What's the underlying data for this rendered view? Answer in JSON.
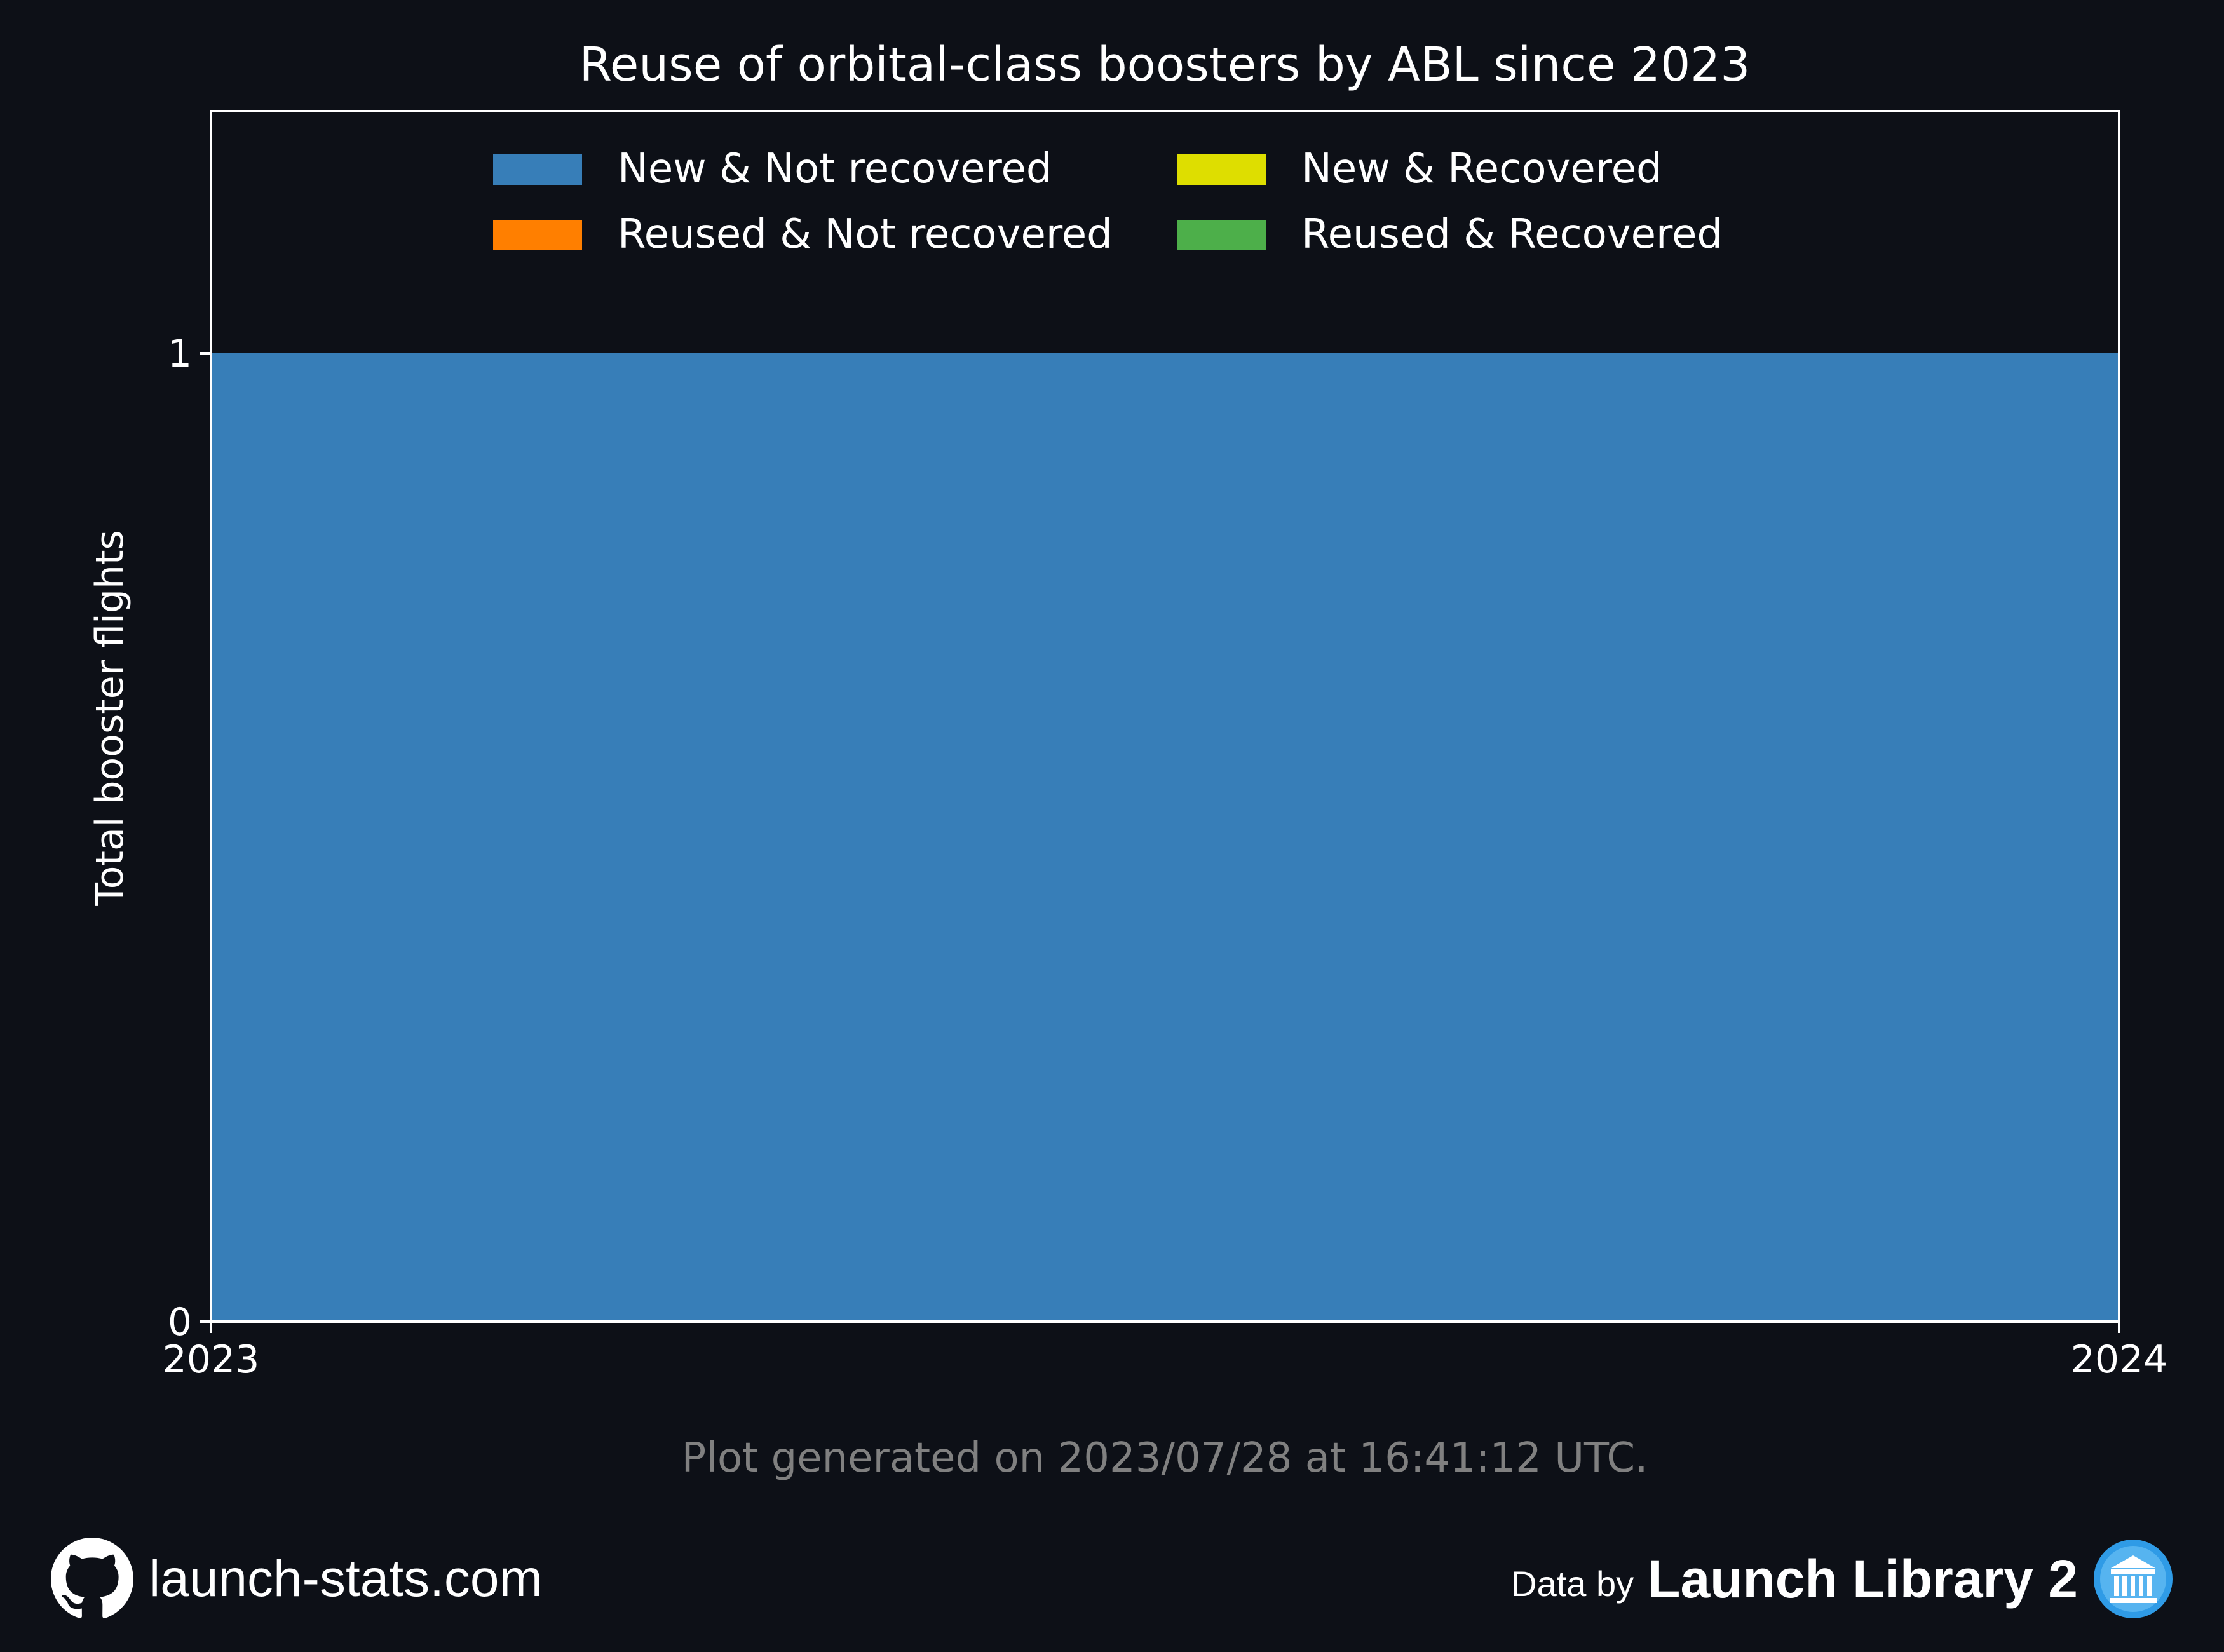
{
  "chart_data": {
    "type": "area",
    "title": "Reuse of orbital-class boosters by ABL since 2023",
    "xlabel": "",
    "ylabel": "Total booster flights",
    "x": [
      2023,
      2024
    ],
    "x_tick_labels": [
      "2023",
      "2024"
    ],
    "y_ticks": [
      0,
      1
    ],
    "y_tick_labels": [
      "0",
      "1"
    ],
    "xlim": [
      2023,
      2024
    ],
    "ylim": [
      0,
      1.25
    ],
    "stacked": true,
    "legend_position": "top-center",
    "series": [
      {
        "name": "New & Not recovered",
        "color": "#377eb8",
        "values": [
          1,
          1
        ]
      },
      {
        "name": "Reused & Not recovered",
        "color": "#ff7f00",
        "values": [
          0,
          0
        ]
      },
      {
        "name": "New & Recovered",
        "color": "#dede00",
        "values": [
          0,
          0
        ]
      },
      {
        "name": "Reused & Recovered",
        "color": "#4daf4a",
        "values": [
          0,
          0
        ]
      }
    ],
    "background": "#0d1017",
    "axis_color": "#ffffff"
  },
  "footnote": "Plot generated on 2023/07/28 at 16:41:12 UTC.",
  "footer": {
    "site": "launch-stats.com",
    "site_icon": "github-icon",
    "data_by": "Data by",
    "source": "Launch Library 2",
    "source_icon": "launch-library-logo-icon"
  }
}
